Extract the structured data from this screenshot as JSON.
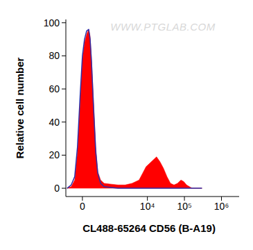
{
  "chart_data": {
    "type": "area",
    "x_label": "CL488-65264 CD56 (B-A19)",
    "y_label": "Relative cell number",
    "watermark": "WWW.PTGLAB.COM",
    "log": "x",
    "x": [
      -390,
      -265,
      -175,
      -110,
      -46,
      0,
      46,
      93,
      141,
      175,
      210,
      265,
      326,
      390,
      489,
      634,
      1014,
      1594,
      2485,
      3848,
      5950,
      7390,
      9190,
      11440,
      14220,
      17670,
      21930,
      27280,
      33900,
      42100,
      52300,
      65000,
      80700,
      96100,
      114400,
      136200,
      162000,
      210500,
      298000
    ],
    "series": [
      {
        "type": "area",
        "color": "#ff0000",
        "values": [
          0,
          1,
          5,
          22,
          55,
          78,
          88,
          93,
          96,
          92,
          78,
          52,
          25,
          10,
          5,
          3,
          2.5,
          2,
          2,
          3,
          5,
          9,
          13,
          15,
          17,
          19,
          16,
          12,
          7,
          3,
          2,
          3,
          5,
          4,
          2,
          1,
          0,
          0,
          0
        ]
      },
      {
        "type": "line",
        "color": "#2e2ea8",
        "values": [
          0,
          2,
          7,
          25,
          58,
          80,
          90,
          95,
          96,
          90,
          76,
          48,
          22,
          9,
          3,
          1,
          0.5,
          0,
          0,
          0,
          0,
          0,
          0,
          0,
          0,
          0,
          0,
          0,
          0,
          0,
          0,
          0,
          0,
          0,
          0,
          0,
          0,
          0,
          0
        ]
      }
    ],
    "xlim": [
      -430,
      3000000
    ],
    "xticks": [
      {
        "value": 0,
        "label": "0"
      },
      {
        "value": 10000,
        "label": "10⁴"
      },
      {
        "value": 100000,
        "label": "10⁵"
      },
      {
        "value": 1000000,
        "label": "10⁶"
      }
    ],
    "ylim": [
      -5,
      102
    ],
    "yticks": [
      0,
      20,
      40,
      60,
      80,
      100
    ]
  }
}
